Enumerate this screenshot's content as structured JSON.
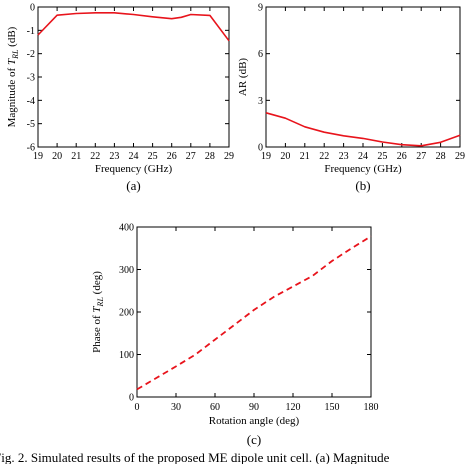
{
  "chart_data": [
    {
      "id": "a",
      "type": "line",
      "panel_label": "(a)",
      "xlabel": "Frequency (GHz)",
      "ylabel_prefix": "Magnitude of ",
      "ylabel_var": "T",
      "ylabel_sub": "RL",
      "ylabel_suffix": " (dB)",
      "xlim": [
        19,
        29
      ],
      "ylim": [
        -6,
        0
      ],
      "xticks": [
        "19",
        "20",
        "21",
        "22",
        "23",
        "24",
        "25",
        "26",
        "27",
        "28",
        "29"
      ],
      "yticks": [
        "0",
        "-1",
        "-2",
        "-3",
        "-4",
        "-5",
        "-6"
      ],
      "series": [
        {
          "color": "#e8141c",
          "style": "solid",
          "x": [
            19,
            20,
            21,
            22,
            23,
            24,
            25,
            26,
            26.5,
            27,
            28,
            29
          ],
          "y": [
            -1.2,
            -0.35,
            -0.28,
            -0.25,
            -0.25,
            -0.32,
            -0.42,
            -0.5,
            -0.44,
            -0.32,
            -0.36,
            -1.45
          ]
        }
      ]
    },
    {
      "id": "b",
      "type": "line",
      "panel_label": "(b)",
      "xlabel": "Frequency (GHz)",
      "ylabel": "AR (dB)",
      "xlim": [
        19,
        29
      ],
      "ylim": [
        0,
        9
      ],
      "xticks": [
        "19",
        "20",
        "21",
        "22",
        "23",
        "24",
        "25",
        "26",
        "27",
        "28",
        "29"
      ],
      "yticks": [
        "0",
        "3",
        "6",
        "9"
      ],
      "series": [
        {
          "color": "#e8141c",
          "style": "solid",
          "x": [
            19,
            20,
            21,
            22,
            23,
            24,
            25,
            26,
            27,
            28,
            29
          ],
          "y": [
            2.2,
            1.85,
            1.3,
            0.95,
            0.72,
            0.55,
            0.32,
            0.15,
            0.08,
            0.3,
            0.75
          ]
        }
      ]
    },
    {
      "id": "c",
      "type": "line",
      "panel_label": "(c)",
      "xlabel": "Rotation angle (deg)",
      "ylabel_prefix": "Phase of ",
      "ylabel_var": "T",
      "ylabel_sub": "RL",
      "ylabel_suffix": " (deg)",
      "xlim": [
        0,
        180
      ],
      "ylim": [
        0,
        400
      ],
      "xticks": [
        "0",
        "30",
        "60",
        "90",
        "120",
        "150",
        "180"
      ],
      "yticks": [
        "0",
        "100",
        "200",
        "300",
        "400"
      ],
      "series": [
        {
          "color": "#e8141c",
          "style": "dashed",
          "x": [
            0,
            15,
            30,
            45,
            60,
            75,
            90,
            105,
            120,
            135,
            150,
            165,
            180
          ],
          "y": [
            18,
            45,
            72,
            100,
            135,
            170,
            205,
            235,
            260,
            285,
            320,
            350,
            378
          ]
        }
      ]
    }
  ],
  "caption": "Fig. 2. Simulated results of the proposed ME dipole unit cell. (a) Magnitude"
}
